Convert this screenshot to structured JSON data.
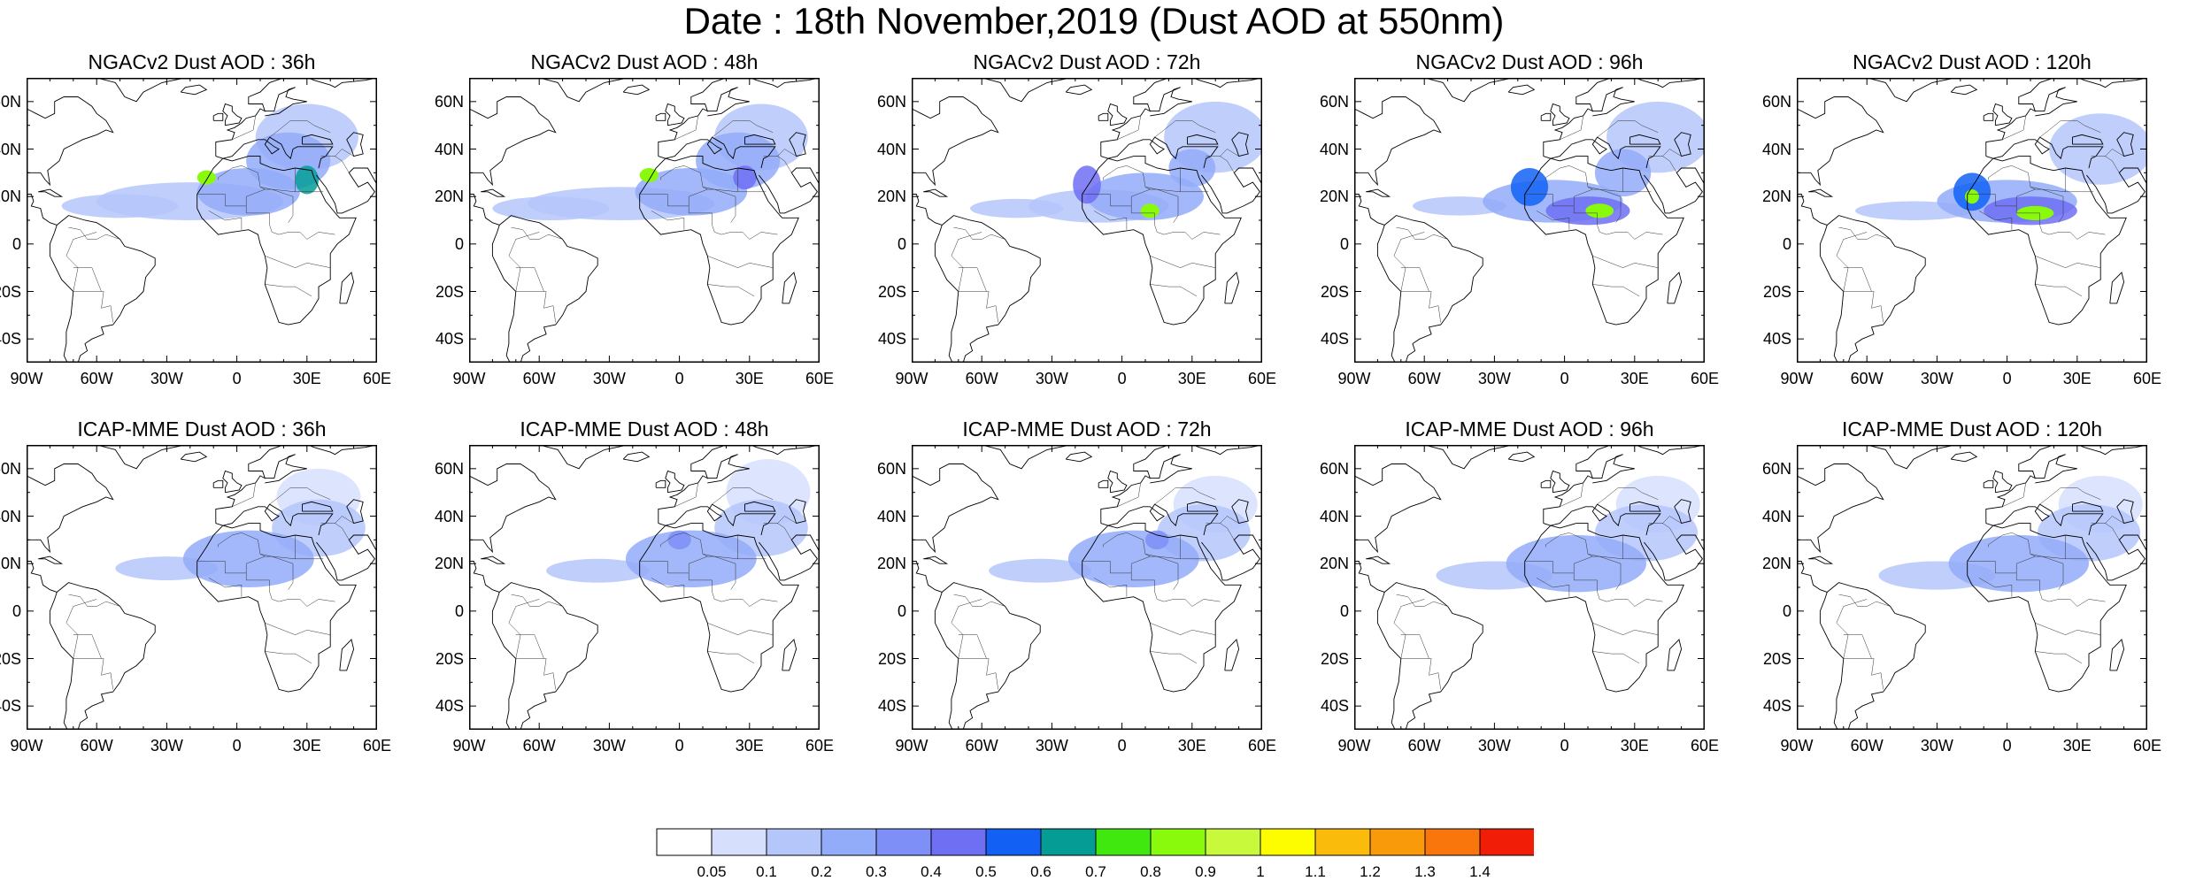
{
  "title": "Date : 18th November,2019 (Dust AOD at 550nm)",
  "lat_ticks": [
    "60N",
    "40N",
    "20N",
    "0",
    "20S",
    "40S"
  ],
  "lat_values": [
    60,
    40,
    20,
    0,
    -20,
    -40
  ],
  "lon_ticks": [
    "90W",
    "60W",
    "30W",
    "0",
    "30E",
    "60E"
  ],
  "lon_values": [
    -90,
    -60,
    -30,
    0,
    30,
    60
  ],
  "map_extent": {
    "lon": [
      -90,
      60
    ],
    "lat": [
      -50,
      70
    ]
  },
  "panels": [
    {
      "title": "NGACv2 Dust AOD : 36h",
      "model": "NGACv2",
      "lead": "36h",
      "plumes": [
        [
          -20,
          18,
          40,
          8,
          0.15
        ],
        [
          5,
          22,
          22,
          10,
          0.25
        ],
        [
          22,
          35,
          18,
          12,
          0.2
        ],
        [
          -50,
          16,
          25,
          5,
          0.1
        ],
        [
          30,
          45,
          22,
          14,
          0.1
        ],
        [
          -13,
          28,
          4,
          3,
          0.8
        ],
        [
          30,
          27,
          5,
          6,
          0.6
        ]
      ]
    },
    {
      "title": "NGACv2 Dust AOD : 48h",
      "model": "NGACv2",
      "lead": "48h",
      "plumes": [
        [
          -25,
          17,
          40,
          7,
          0.15
        ],
        [
          5,
          22,
          24,
          10,
          0.25
        ],
        [
          25,
          35,
          18,
          12,
          0.2
        ],
        [
          -55,
          15,
          25,
          5,
          0.1
        ],
        [
          35,
          45,
          20,
          14,
          0.1
        ],
        [
          -13,
          29,
          4,
          3,
          0.8
        ],
        [
          28,
          28,
          5,
          5,
          0.45
        ]
      ]
    },
    {
      "title": "NGACv2 Dust AOD : 72h",
      "model": "NGACv2",
      "lead": "72h",
      "plumes": [
        [
          -10,
          16,
          30,
          7,
          0.15
        ],
        [
          10,
          20,
          25,
          10,
          0.25
        ],
        [
          -15,
          25,
          6,
          8,
          0.45
        ],
        [
          40,
          45,
          22,
          15,
          0.1
        ],
        [
          -45,
          15,
          20,
          4,
          0.1
        ],
        [
          12,
          14,
          4,
          3,
          0.8
        ],
        [
          30,
          32,
          10,
          8,
          0.2
        ]
      ]
    },
    {
      "title": "NGACv2 Dust AOD : 96h",
      "model": "NGACv2",
      "lead": "96h",
      "plumes": [
        [
          -5,
          18,
          30,
          9,
          0.2
        ],
        [
          10,
          14,
          18,
          6,
          0.4
        ],
        [
          -15,
          24,
          8,
          8,
          0.5
        ],
        [
          -45,
          16,
          20,
          4,
          0.1
        ],
        [
          40,
          45,
          22,
          15,
          0.1
        ],
        [
          15,
          14,
          6,
          3,
          0.8
        ],
        [
          25,
          30,
          12,
          10,
          0.2
        ]
      ]
    },
    {
      "title": "NGACv2 Dust AOD : 120h",
      "model": "NGACv2",
      "lead": "120h",
      "plumes": [
        [
          0,
          18,
          30,
          9,
          0.2
        ],
        [
          10,
          14,
          20,
          6,
          0.45
        ],
        [
          -15,
          22,
          8,
          8,
          0.5
        ],
        [
          -40,
          14,
          25,
          4,
          0.1
        ],
        [
          40,
          40,
          22,
          15,
          0.12
        ],
        [
          12,
          13,
          8,
          3,
          0.8
        ],
        [
          -15,
          20,
          3,
          3,
          0.8
        ]
      ]
    },
    {
      "title": "ICAP-MME Dust AOD : 36h",
      "model": "ICAP-MME",
      "lead": "36h",
      "plumes": [
        [
          5,
          22,
          28,
          12,
          0.25
        ],
        [
          -30,
          18,
          22,
          5,
          0.12
        ],
        [
          35,
          35,
          20,
          12,
          0.15
        ],
        [
          35,
          48,
          18,
          12,
          0.08
        ]
      ]
    },
    {
      "title": "ICAP-MME Dust AOD : 48h",
      "model": "ICAP-MME",
      "lead": "48h",
      "plumes": [
        [
          5,
          22,
          28,
          12,
          0.25
        ],
        [
          -35,
          17,
          22,
          5,
          0.12
        ],
        [
          35,
          35,
          20,
          12,
          0.15
        ],
        [
          38,
          50,
          18,
          14,
          0.08
        ],
        [
          0,
          30,
          5,
          4,
          0.35
        ]
      ]
    },
    {
      "title": "ICAP-MME Dust AOD : 72h",
      "model": "ICAP-MME",
      "lead": "72h",
      "plumes": [
        [
          5,
          22,
          28,
          12,
          0.25
        ],
        [
          -35,
          17,
          22,
          5,
          0.12
        ],
        [
          35,
          33,
          20,
          12,
          0.18
        ],
        [
          40,
          45,
          18,
          12,
          0.08
        ],
        [
          15,
          30,
          5,
          4,
          0.3
        ]
      ]
    },
    {
      "title": "ICAP-MME Dust AOD : 96h",
      "model": "ICAP-MME",
      "lead": "96h",
      "plumes": [
        [
          5,
          20,
          30,
          12,
          0.25
        ],
        [
          -30,
          15,
          25,
          6,
          0.15
        ],
        [
          35,
          33,
          22,
          12,
          0.18
        ],
        [
          40,
          45,
          18,
          12,
          0.08
        ]
      ]
    },
    {
      "title": "ICAP-MME Dust AOD : 120h",
      "model": "ICAP-MME",
      "lead": "120h",
      "plumes": [
        [
          5,
          20,
          30,
          12,
          0.25
        ],
        [
          -30,
          15,
          25,
          6,
          0.15
        ],
        [
          35,
          33,
          22,
          12,
          0.18
        ],
        [
          40,
          45,
          18,
          12,
          0.08
        ]
      ]
    }
  ],
  "colorbar": {
    "levels": [
      "0.05",
      "0.1",
      "0.2",
      "0.3",
      "0.4",
      "0.5",
      "0.6",
      "0.7",
      "0.8",
      "0.9",
      "1",
      "1.1",
      "1.2",
      "1.3",
      "1.4"
    ],
    "colors": [
      "#ffffff",
      "#d6e0fd",
      "#b5c6fb",
      "#93acf9",
      "#7e8ff7",
      "#6e6ff2",
      "#1261f4",
      "#059c96",
      "#40e810",
      "#8afa0c",
      "#c8fa3b",
      "#fdfd00",
      "#fbbb0a",
      "#f99a0b",
      "#f8760b",
      "#f21d06"
    ]
  },
  "land_color": "#ffffff",
  "coast_color": "#000000"
}
